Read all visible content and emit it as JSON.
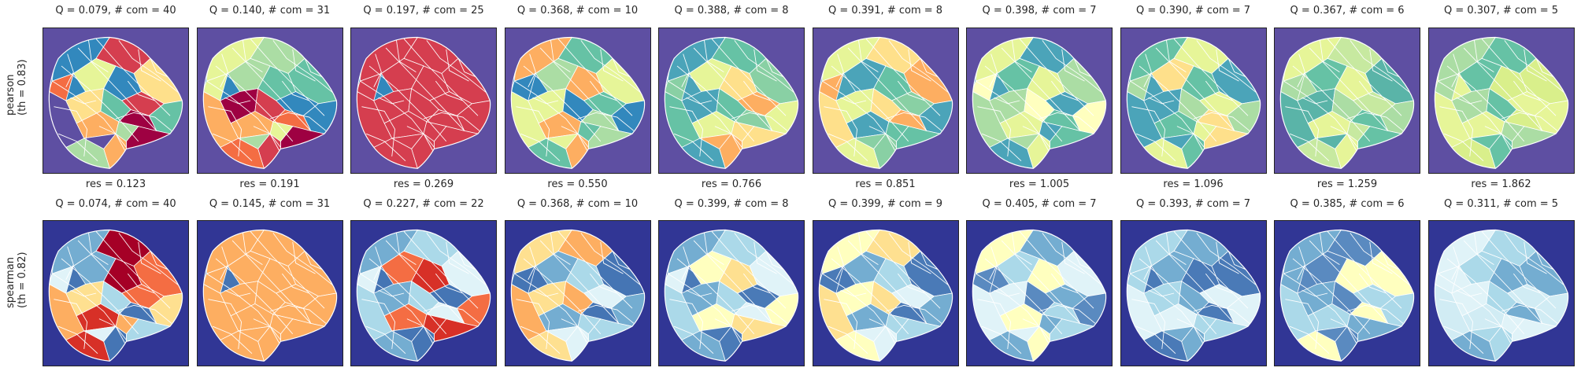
{
  "rows": [
    {
      "label_line1": "pearson",
      "label_line2": "(th = 0.83)",
      "background": "#5e4fa2",
      "panels": [
        {
          "title": "Q = 0.079,  # com = 40",
          "q": 0.079,
          "com": 40,
          "palette": [
            "#3288bd",
            "#66c2a5",
            "#abdda4",
            "#e6f598",
            "#fee08b",
            "#fdae61",
            "#f46d43",
            "#d53e4f",
            "#9e0142",
            "#5e4fa2"
          ]
        },
        {
          "title": "Q = 0.140,  # com = 31",
          "q": 0.14,
          "com": 31,
          "palette": [
            "#3288bd",
            "#66c2a5",
            "#abdda4",
            "#e6f598",
            "#fdae61",
            "#f46d43",
            "#d53e4f",
            "#9e0142"
          ]
        },
        {
          "title": "Q = 0.197,  # com = 25",
          "q": 0.197,
          "com": 25,
          "palette": [
            "#3288bd",
            "#66c2a5",
            "#abdda4",
            "#e6f598",
            "#fdae61",
            "#f46d43",
            "#d53e4f"
          ]
        },
        {
          "title": "Q = 0.368,  # com = 10",
          "q": 0.368,
          "com": 10,
          "palette": [
            "#3288bd",
            "#66c2a5",
            "#abdda4",
            "#e6f598",
            "#fdae61"
          ]
        },
        {
          "title": "Q = 0.388,  # com = 8",
          "q": 0.388,
          "com": 8,
          "palette": [
            "#4ba4b9",
            "#66c2a5",
            "#89d0a4",
            "#e6f598",
            "#fee08b",
            "#fdae61"
          ]
        },
        {
          "title": "Q = 0.391,  # com = 8",
          "q": 0.391,
          "com": 8,
          "palette": [
            "#4ba4b9",
            "#66c2a5",
            "#89d0a4",
            "#e6f598",
            "#fee08b",
            "#fdae61"
          ]
        },
        {
          "title": "Q = 0.398,  # com = 7",
          "q": 0.398,
          "com": 7,
          "palette": [
            "#4ba4b9",
            "#66c2a5",
            "#abdda4",
            "#e6f598",
            "#ffffbf"
          ]
        },
        {
          "title": "Q = 0.390,  # com = 7",
          "q": 0.39,
          "com": 7,
          "palette": [
            "#4ba4b9",
            "#66c2a5",
            "#abdda4",
            "#e6f598",
            "#fee08b"
          ]
        },
        {
          "title": "Q = 0.367,  # com = 6",
          "q": 0.367,
          "com": 6,
          "palette": [
            "#abdda4",
            "#c7e9a0",
            "#66c2a5",
            "#5ab4a8",
            "#e6f598"
          ]
        },
        {
          "title": "Q = 0.307,  # com = 5",
          "q": 0.307,
          "com": 5,
          "palette": [
            "#e6f598",
            "#d9ef8b",
            "#66c2a5",
            "#abdda4"
          ]
        }
      ],
      "res": [
        "res = 0.123",
        "res = 0.191",
        "res = 0.269",
        "res = 0.550",
        "res = 0.766",
        "res = 0.851",
        "res = 1.005",
        "res = 1.096",
        "res = 1.259",
        "res = 1.862"
      ]
    },
    {
      "label_line1": "spearman",
      "label_line2": "(th = 0.82)",
      "background": "#313695",
      "panels": [
        {
          "title": "Q = 0.074,  # com = 40",
          "q": 0.074,
          "com": 40,
          "palette": [
            "#4575b4",
            "#74add1",
            "#abd9e9",
            "#e0f3f8",
            "#fee090",
            "#fdae61",
            "#f46d43",
            "#d73027",
            "#a50026"
          ]
        },
        {
          "title": "Q = 0.145,  # com = 31",
          "q": 0.145,
          "com": 31,
          "palette": [
            "#4575b4",
            "#74add1",
            "#abd9e9",
            "#e0f3f8",
            "#fdae61",
            "#f46d43",
            "#d73027"
          ]
        },
        {
          "title": "Q = 0.227,  # com = 22",
          "q": 0.227,
          "com": 22,
          "palette": [
            "#4575b4",
            "#74add1",
            "#abd9e9",
            "#e0f3f8",
            "#f46d43",
            "#d73027"
          ]
        },
        {
          "title": "Q = 0.368,  # com = 10",
          "q": 0.368,
          "com": 10,
          "palette": [
            "#4575b4",
            "#74add1",
            "#abd9e9",
            "#e0f3f8",
            "#fee090",
            "#fdae61"
          ]
        },
        {
          "title": "Q = 0.399,  # com = 8",
          "q": 0.399,
          "com": 8,
          "palette": [
            "#4a7ab7",
            "#74add1",
            "#abd9e9",
            "#e0f3f8",
            "#ffffbf",
            "#fee090"
          ]
        },
        {
          "title": "Q = 0.399,  # com = 9",
          "q": 0.399,
          "com": 9,
          "palette": [
            "#4a7ab7",
            "#74add1",
            "#abd9e9",
            "#e0f3f8",
            "#ffffbf",
            "#fee090"
          ]
        },
        {
          "title": "Q = 0.405,  # com = 7",
          "q": 0.405,
          "com": 7,
          "palette": [
            "#5a8ac0",
            "#74add1",
            "#abd9e9",
            "#e0f3f8",
            "#ffffbf"
          ]
        },
        {
          "title": "Q = 0.393,  # com = 7",
          "q": 0.393,
          "com": 7,
          "palette": [
            "#4a7ab7",
            "#74add1",
            "#abd9e9",
            "#e0f3f8"
          ]
        },
        {
          "title": "Q = 0.385,  # com = 6",
          "q": 0.385,
          "com": 6,
          "palette": [
            "#5a8ac0",
            "#74add1",
            "#abd9e9",
            "#ffffbf"
          ]
        },
        {
          "title": "Q = 0.311,  # com = 5",
          "q": 0.311,
          "com": 5,
          "palette": [
            "#e0f3f8",
            "#d1ecf4",
            "#74add1",
            "#abd9e9"
          ]
        }
      ],
      "res": []
    }
  ]
}
